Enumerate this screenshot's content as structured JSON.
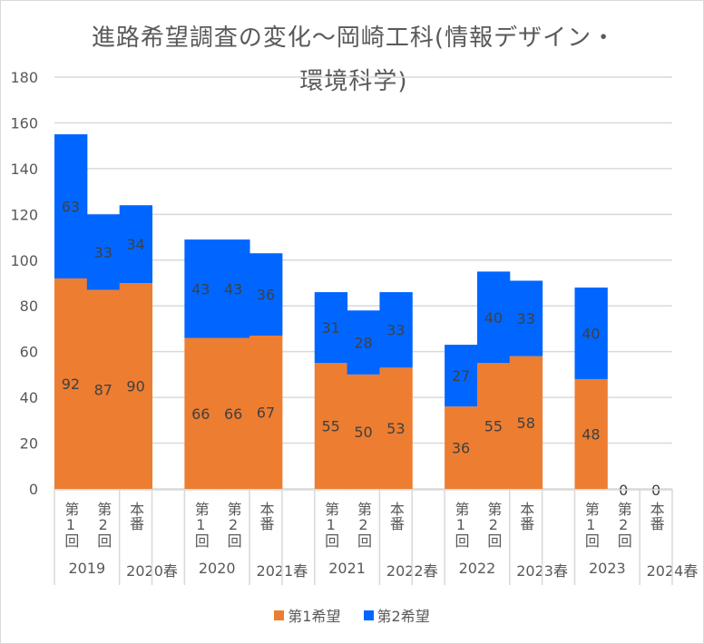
{
  "chart_data": {
    "type": "bar",
    "stacked": true,
    "title": "進路希望調査の変化～岡崎工科(情報デザイン・環境科学)",
    "xlabel": "",
    "ylabel": "",
    "ylim": [
      0,
      180
    ],
    "yticks": [
      0,
      20,
      40,
      60,
      80,
      100,
      120,
      140,
      160,
      180
    ],
    "grid": true,
    "legend_position": "bottom",
    "groups": [
      {
        "label_a": "2019",
        "label_b": "2020春",
        "categories": [
          "第1回",
          "第2回",
          "本番"
        ]
      },
      {
        "label_a": "2020",
        "label_b": "2021春",
        "categories": [
          "第1回",
          "第2回",
          "本番"
        ]
      },
      {
        "label_a": "2021",
        "label_b": "2022春",
        "categories": [
          "第1回",
          "第2回",
          "本番"
        ]
      },
      {
        "label_a": "2022",
        "label_b": "2023春",
        "categories": [
          "第1回",
          "第2回",
          "本番"
        ]
      },
      {
        "label_a": "2023",
        "label_b": "2024春",
        "categories": [
          "第1回",
          "第2回",
          "本番"
        ]
      }
    ],
    "series": [
      {
        "name": "第1希望",
        "color": "#ED7D31",
        "values": [
          92,
          87,
          90,
          66,
          66,
          67,
          55,
          50,
          53,
          36,
          55,
          58,
          48,
          0,
          0
        ]
      },
      {
        "name": "第2希望",
        "color": "#0066FF",
        "values": [
          63,
          33,
          34,
          43,
          43,
          36,
          31,
          28,
          33,
          27,
          40,
          33,
          40,
          null,
          null
        ]
      }
    ],
    "zero_labels": [
      false,
      false,
      false,
      false,
      false,
      false,
      false,
      false,
      false,
      false,
      false,
      false,
      false,
      true,
      true
    ]
  },
  "colors": {
    "grid": "#D9D9D9",
    "text": "#595959",
    "data_label": "#404040"
  }
}
